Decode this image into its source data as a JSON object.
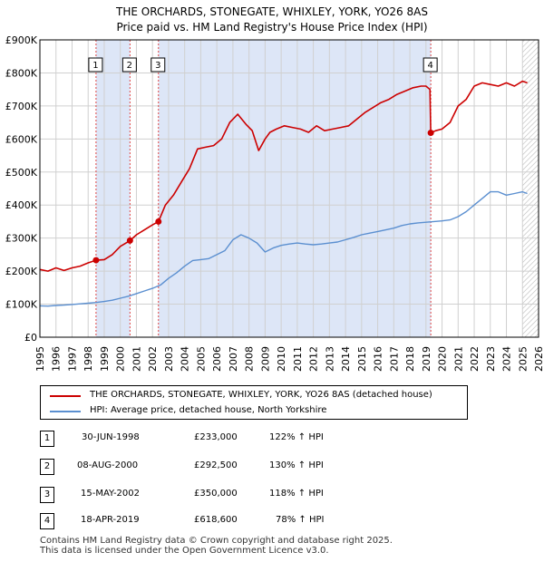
{
  "title_line1": "THE ORCHARDS, STONEGATE, WHIXLEY, YORK, YO26 8AS",
  "title_line2": "Price paid vs. HM Land Registry's House Price Index (HPI)",
  "colors": {
    "property": "#cc0000",
    "hpi": "#5b8fd0",
    "shade": "#dde6f7",
    "grid": "#d0d0d0"
  },
  "legend": {
    "property_label": "THE ORCHARDS, STONEGATE, WHIXLEY, YORK, YO26 8AS (detached house)",
    "hpi_label": "HPI: Average price, detached house, North Yorkshire"
  },
  "transactions": [
    {
      "num": "1",
      "date": "30-JUN-1998",
      "price": "£233,000",
      "hpi": "122% ↑ HPI"
    },
    {
      "num": "2",
      "date": "08-AUG-2000",
      "price": "£292,500",
      "hpi": "130% ↑ HPI"
    },
    {
      "num": "3",
      "date": "15-MAY-2002",
      "price": "£350,000",
      "hpi": "118% ↑ HPI"
    },
    {
      "num": "4",
      "date": "18-APR-2019",
      "price": "£618,600",
      "hpi": "78% ↑ HPI"
    }
  ],
  "footer_line1": "Contains HM Land Registry data © Crown copyright and database right 2025.",
  "footer_line2": "This data is licensed under the Open Government Licence v3.0.",
  "chart_data": {
    "type": "line",
    "xlim": [
      1995,
      2026
    ],
    "ylim": [
      0,
      900000
    ],
    "y_ticks": [
      0,
      100000,
      200000,
      300000,
      400000,
      500000,
      600000,
      700000,
      800000,
      900000
    ],
    "y_tick_labels": [
      "£0",
      "£100K",
      "£200K",
      "£300K",
      "£400K",
      "£500K",
      "£600K",
      "£700K",
      "£800K",
      "£900K"
    ],
    "x_ticks": [
      "1995",
      "1996",
      "1997",
      "1998",
      "1999",
      "2000",
      "2001",
      "2002",
      "2003",
      "2004",
      "2005",
      "2006",
      "2007",
      "2008",
      "2009",
      "2010",
      "2011",
      "2012",
      "2013",
      "2014",
      "2015",
      "2016",
      "2017",
      "2018",
      "2019",
      "2020",
      "2021",
      "2022",
      "2023",
      "2024",
      "2025",
      "2026"
    ],
    "shaded_ranges": [
      [
        1998.5,
        2000.6
      ],
      [
        2002.37,
        2019.3
      ]
    ],
    "hatched_from": 2025.0,
    "sale_markers": [
      {
        "num": "1",
        "x": 1998.49,
        "y": 233000
      },
      {
        "num": "2",
        "x": 2000.6,
        "y": 292500
      },
      {
        "num": "3",
        "x": 2002.37,
        "y": 350000
      },
      {
        "num": "4",
        "x": 2019.3,
        "y": 618600
      }
    ],
    "series": [
      {
        "name": "THE ORCHARDS, STONEGATE, WHIXLEY, YORK, YO26 8AS (detached house)",
        "x": [
          1995.0,
          1995.5,
          1996.0,
          1996.5,
          1997.0,
          1997.5,
          1998.0,
          1998.49,
          1999.0,
          1999.5,
          2000.0,
          2000.6,
          2001.0,
          2001.5,
          2002.0,
          2002.37,
          2002.8,
          2003.3,
          2003.8,
          2004.3,
          2004.8,
          2005.3,
          2005.8,
          2006.3,
          2006.8,
          2007.3,
          2007.8,
          2008.2,
          2008.6,
          2009.0,
          2009.3,
          2009.7,
          2010.2,
          2010.7,
          2011.2,
          2011.7,
          2012.2,
          2012.7,
          2013.2,
          2013.7,
          2014.2,
          2014.7,
          2015.2,
          2015.7,
          2016.2,
          2016.7,
          2017.2,
          2017.7,
          2018.2,
          2018.7,
          2019.0,
          2019.25,
          2019.3,
          2019.6,
          2020.0,
          2020.5,
          2021.0,
          2021.5,
          2022.0,
          2022.5,
          2023.0,
          2023.5,
          2024.0,
          2024.5,
          2025.0,
          2025.3
        ],
        "values": [
          205000,
          200000,
          210000,
          202000,
          210000,
          215000,
          225000,
          233000,
          235000,
          250000,
          275000,
          292500,
          310000,
          325000,
          340000,
          350000,
          400000,
          430000,
          470000,
          510000,
          570000,
          575000,
          580000,
          600000,
          650000,
          675000,
          645000,
          625000,
          565000,
          600000,
          620000,
          630000,
          640000,
          635000,
          630000,
          620000,
          640000,
          625000,
          630000,
          635000,
          640000,
          660000,
          680000,
          695000,
          710000,
          720000,
          735000,
          745000,
          755000,
          760000,
          760000,
          750000,
          618600,
          625000,
          630000,
          650000,
          700000,
          720000,
          760000,
          770000,
          765000,
          760000,
          770000,
          760000,
          775000,
          770000
        ]
      },
      {
        "name": "HPI: Average price, detached house, North Yorkshire",
        "x": [
          1995.0,
          1995.5,
          1996.0,
          1996.5,
          1997.0,
          1997.5,
          1998.0,
          1998.5,
          1999.0,
          1999.5,
          2000.0,
          2000.5,
          2001.0,
          2001.5,
          2002.0,
          2002.5,
          2003.0,
          2003.5,
          2004.0,
          2004.5,
          2005.0,
          2005.5,
          2006.0,
          2006.5,
          2007.0,
          2007.5,
          2008.0,
          2008.5,
          2009.0,
          2009.5,
          2010.0,
          2010.5,
          2011.0,
          2011.5,
          2012.0,
          2012.5,
          2013.0,
          2013.5,
          2014.0,
          2014.5,
          2015.0,
          2015.5,
          2016.0,
          2016.5,
          2017.0,
          2017.5,
          2018.0,
          2018.5,
          2019.0,
          2019.5,
          2020.0,
          2020.5,
          2021.0,
          2021.5,
          2022.0,
          2022.5,
          2023.0,
          2023.5,
          2024.0,
          2024.5,
          2025.0,
          2025.3
        ],
        "values": [
          95000,
          94000,
          96000,
          97000,
          99000,
          101000,
          103000,
          105000,
          108000,
          112000,
          118000,
          124000,
          132000,
          140000,
          148000,
          158000,
          178000,
          195000,
          215000,
          232000,
          235000,
          238000,
          250000,
          262000,
          295000,
          310000,
          300000,
          285000,
          258000,
          270000,
          278000,
          282000,
          285000,
          282000,
          280000,
          282000,
          285000,
          288000,
          295000,
          302000,
          310000,
          315000,
          320000,
          325000,
          330000,
          338000,
          343000,
          346000,
          348000,
          350000,
          352000,
          355000,
          365000,
          380000,
          400000,
          420000,
          440000,
          440000,
          430000,
          435000,
          440000,
          435000
        ]
      }
    ]
  }
}
